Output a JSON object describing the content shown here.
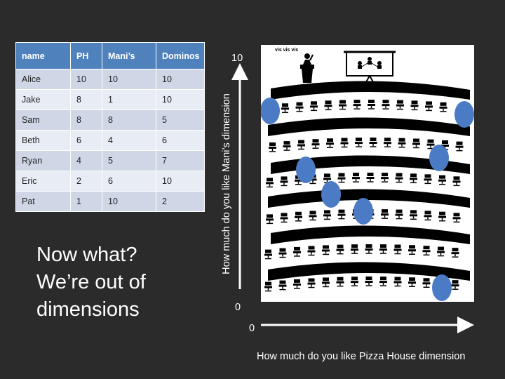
{
  "table": {
    "headers": [
      "name",
      "PH",
      "Mani’s",
      "Dominos"
    ],
    "rows": [
      [
        "Alice",
        "10",
        "10",
        "10"
      ],
      [
        "Jake",
        "8",
        "1",
        "10"
      ],
      [
        "Sam",
        "8",
        "8",
        "5"
      ],
      [
        "Beth",
        "6",
        "4",
        "6"
      ],
      [
        "Ryan",
        "4",
        "5",
        "7"
      ],
      [
        "Eric",
        "2",
        "6",
        "10"
      ],
      [
        "Pat",
        "1",
        "10",
        "2"
      ]
    ]
  },
  "question": {
    "line1": "Now what?",
    "line2": "We’re out of",
    "line3": "dimensions"
  },
  "room": {
    "podium_text": "vis vis vis",
    "icons": [
      "podium-speaker-icon",
      "projector-screen-icon",
      "chair-icon"
    ],
    "dot_color": "#4a7bc4"
  },
  "axes": {
    "y_label": "How much do you like Mani’s dimension",
    "x_label": "How much do you like Pizza House dimension",
    "y_top": "10",
    "y_bottom": "0",
    "x_left": "0"
  },
  "colors": {
    "background": "#2b2b2b",
    "header": "#4f81bd",
    "row_odd": "#cfd7e6",
    "row_even": "#e8ecf4"
  }
}
